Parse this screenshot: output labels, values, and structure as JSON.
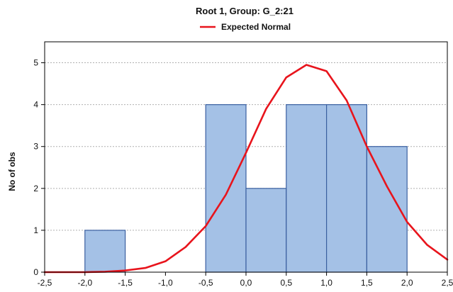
{
  "chart_data": {
    "type": "bar",
    "title": "Root  1, Group: G_2:21",
    "ylabel": "No of obs",
    "xlabel": "",
    "xlim": [
      -2.5,
      2.5
    ],
    "ylim": [
      0,
      5.5
    ],
    "x_ticks": [
      "-2,5",
      "-2,0",
      "-1,5",
      "-1,0",
      "-0,5",
      "0,0",
      "0,5",
      "1,0",
      "1,5",
      "2,0",
      "2,5"
    ],
    "y_ticks": [
      "0",
      "1",
      "2",
      "3",
      "4",
      "5"
    ],
    "grid": true,
    "legend_position": "top-center",
    "bins": [
      {
        "start": -2.0,
        "end": -1.5,
        "count": 1
      },
      {
        "start": -0.5,
        "end": 0.0,
        "count": 4
      },
      {
        "start": 0.0,
        "end": 0.5,
        "count": 2
      },
      {
        "start": 0.5,
        "end": 1.0,
        "count": 4
      },
      {
        "start": 1.0,
        "end": 1.5,
        "count": 4
      },
      {
        "start": 1.5,
        "end": 2.0,
        "count": 3
      }
    ],
    "series": [
      {
        "name": "Expected Normal",
        "color": "#e8141c",
        "x": [
          -2.5,
          -2.25,
          -2.0,
          -1.75,
          -1.5,
          -1.25,
          -1.0,
          -0.75,
          -0.5,
          -0.25,
          0.0,
          0.25,
          0.5,
          0.75,
          1.0,
          1.25,
          1.5,
          1.75,
          2.0,
          2.25,
          2.5
        ],
        "y": [
          0.0,
          0.0,
          0.0,
          0.01,
          0.04,
          0.1,
          0.26,
          0.6,
          1.1,
          1.85,
          2.85,
          3.9,
          4.65,
          4.95,
          4.8,
          4.1,
          3.0,
          2.05,
          1.2,
          0.65,
          0.3
        ]
      }
    ],
    "bar_color": "#a4c1e6",
    "bar_edge_color": "#3a5fa0"
  }
}
